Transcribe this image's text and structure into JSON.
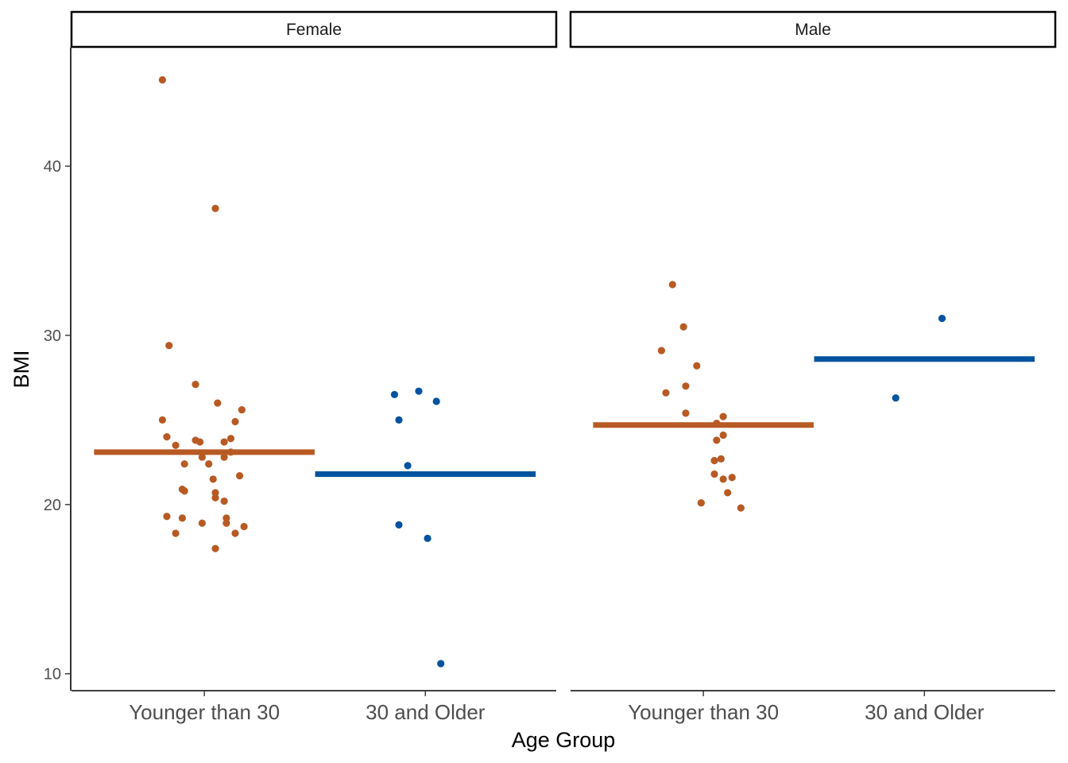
{
  "chart_data": {
    "type": "scatter",
    "subtype": "faceted jitter strip plot with group mean bars",
    "facets": [
      "Female",
      "Male"
    ],
    "categories": [
      "Younger than 30",
      "30 and Older"
    ],
    "xlabel": "Age Group",
    "ylabel": "BMI",
    "ylim": [
      9,
      47
    ],
    "yticks": [
      10,
      20,
      30,
      40
    ],
    "grid": false,
    "legend": "none",
    "colors": {
      "Younger than 30": "#b75a23",
      "30 and Older": "#00539e"
    },
    "points": [
      {
        "facet": "Female",
        "group": "Younger than 30",
        "data": [
          [
            -0.19,
            45.1
          ],
          [
            0.05,
            37.5
          ],
          [
            -0.16,
            29.4
          ],
          [
            -0.04,
            27.1
          ],
          [
            0.06,
            26.0
          ],
          [
            0.17,
            25.6
          ],
          [
            -0.19,
            25.0
          ],
          [
            0.14,
            24.9
          ],
          [
            -0.17,
            24.0
          ],
          [
            0.12,
            23.9
          ],
          [
            -0.04,
            23.8
          ],
          [
            -0.02,
            23.7
          ],
          [
            0.09,
            23.7
          ],
          [
            -0.13,
            23.5
          ],
          [
            0.12,
            23.1
          ],
          [
            -0.01,
            22.8
          ],
          [
            0.09,
            22.8
          ],
          [
            -0.09,
            22.4
          ],
          [
            0.02,
            22.4
          ],
          [
            0.16,
            21.7
          ],
          [
            0.04,
            21.5
          ],
          [
            -0.1,
            20.9
          ],
          [
            -0.09,
            20.8
          ],
          [
            0.05,
            20.7
          ],
          [
            0.05,
            20.4
          ],
          [
            0.09,
            20.2
          ],
          [
            -0.17,
            19.3
          ],
          [
            -0.1,
            19.2
          ],
          [
            0.1,
            19.2
          ],
          [
            -0.01,
            18.9
          ],
          [
            0.1,
            18.9
          ],
          [
            0.18,
            18.7
          ],
          [
            -0.13,
            18.3
          ],
          [
            0.14,
            18.3
          ],
          [
            0.05,
            17.4
          ]
        ]
      },
      {
        "facet": "Female",
        "group": "30 and Older",
        "data": [
          [
            -0.14,
            26.5
          ],
          [
            -0.03,
            26.7
          ],
          [
            0.05,
            26.1
          ],
          [
            -0.12,
            25.0
          ],
          [
            -0.08,
            22.3
          ],
          [
            -0.12,
            18.8
          ],
          [
            0.01,
            18.0
          ],
          [
            0.07,
            10.6
          ]
        ]
      },
      {
        "facet": "Male",
        "group": "Younger than 30",
        "data": [
          [
            -0.14,
            33.0
          ],
          [
            -0.09,
            30.5
          ],
          [
            -0.19,
            29.1
          ],
          [
            -0.03,
            28.2
          ],
          [
            -0.08,
            27.0
          ],
          [
            -0.17,
            26.6
          ],
          [
            -0.08,
            25.4
          ],
          [
            0.09,
            25.2
          ],
          [
            0.06,
            24.8
          ],
          [
            0.09,
            24.1
          ],
          [
            0.06,
            23.8
          ],
          [
            0.08,
            22.7
          ],
          [
            0.05,
            22.6
          ],
          [
            0.05,
            21.8
          ],
          [
            0.09,
            21.5
          ],
          [
            0.13,
            21.6
          ],
          [
            0.11,
            20.7
          ],
          [
            -0.01,
            20.1
          ],
          [
            0.17,
            19.8
          ]
        ]
      },
      {
        "facet": "Male",
        "group": "30 and Older",
        "data": [
          [
            -0.13,
            26.3
          ],
          [
            0.08,
            31.0
          ]
        ]
      }
    ],
    "means": [
      {
        "facet": "Female",
        "group": "Younger than 30",
        "value": 23.1
      },
      {
        "facet": "Female",
        "group": "30 and Older",
        "value": 21.8
      },
      {
        "facet": "Male",
        "group": "Younger than 30",
        "value": 24.7
      },
      {
        "facet": "Male",
        "group": "30 and Older",
        "value": 28.6
      }
    ]
  }
}
